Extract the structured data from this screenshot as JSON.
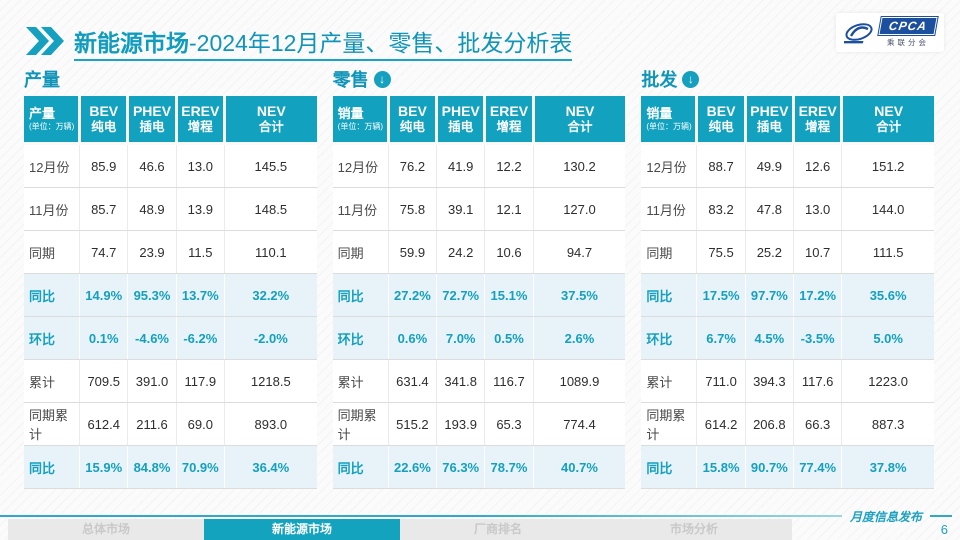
{
  "page": {
    "title_bold": "新能源市场",
    "title_rest": "-2024年12月产量、零售、批发分析表",
    "footer_label": "月度信息发布",
    "page_number": "6",
    "watermark": "CPCA"
  },
  "logo": {
    "text": "CPCA",
    "subtext": "乘联分会"
  },
  "icons": {
    "down_arrow": "↓",
    "double_chevron": "double-chevron"
  },
  "colors": {
    "primary_teal": "#12A2BF",
    "highlight_bg": "#E7F3F8",
    "logo_blue": "#1C4F9E"
  },
  "tables": [
    {
      "section": "产量",
      "arrow": false,
      "unit_label": "产量",
      "unit_note": "(单位：万辆)",
      "columns": [
        {
          "en": "BEV",
          "cn": "纯电"
        },
        {
          "en": "PHEV",
          "cn": "插电"
        },
        {
          "en": "EREV",
          "cn": "增程"
        },
        {
          "en": "NEV",
          "cn": "合计"
        }
      ],
      "rows": [
        {
          "label": "12月份",
          "highlight": false,
          "values": [
            "85.9",
            "46.6",
            "13.0",
            "145.5"
          ]
        },
        {
          "label": "11月份",
          "highlight": false,
          "values": [
            "85.7",
            "48.9",
            "13.9",
            "148.5"
          ]
        },
        {
          "label": "同期",
          "highlight": false,
          "values": [
            "74.7",
            "23.9",
            "11.5",
            "110.1"
          ]
        },
        {
          "label": "同比",
          "highlight": true,
          "values": [
            "14.9%",
            "95.3%",
            "13.7%",
            "32.2%"
          ]
        },
        {
          "label": "环比",
          "highlight": true,
          "values": [
            "0.1%",
            "-4.6%",
            "-6.2%",
            "-2.0%"
          ]
        },
        {
          "label": "累计",
          "highlight": false,
          "values": [
            "709.5",
            "391.0",
            "117.9",
            "1218.5"
          ]
        },
        {
          "label": "同期累计",
          "highlight": false,
          "values": [
            "612.4",
            "211.6",
            "69.0",
            "893.0"
          ]
        },
        {
          "label": "同比",
          "highlight": true,
          "values": [
            "15.9%",
            "84.8%",
            "70.9%",
            "36.4%"
          ]
        }
      ]
    },
    {
      "section": "零售",
      "arrow": true,
      "unit_label": "销量",
      "unit_note": "(单位：万辆)",
      "columns": [
        {
          "en": "BEV",
          "cn": "纯电"
        },
        {
          "en": "PHEV",
          "cn": "插电"
        },
        {
          "en": "EREV",
          "cn": "增程"
        },
        {
          "en": "NEV",
          "cn": "合计"
        }
      ],
      "rows": [
        {
          "label": "12月份",
          "highlight": false,
          "values": [
            "76.2",
            "41.9",
            "12.2",
            "130.2"
          ]
        },
        {
          "label": "11月份",
          "highlight": false,
          "values": [
            "75.8",
            "39.1",
            "12.1",
            "127.0"
          ]
        },
        {
          "label": "同期",
          "highlight": false,
          "values": [
            "59.9",
            "24.2",
            "10.6",
            "94.7"
          ]
        },
        {
          "label": "同比",
          "highlight": true,
          "values": [
            "27.2%",
            "72.7%",
            "15.1%",
            "37.5%"
          ]
        },
        {
          "label": "环比",
          "highlight": true,
          "values": [
            "0.6%",
            "7.0%",
            "0.5%",
            "2.6%"
          ]
        },
        {
          "label": "累计",
          "highlight": false,
          "values": [
            "631.4",
            "341.8",
            "116.7",
            "1089.9"
          ]
        },
        {
          "label": "同期累计",
          "highlight": false,
          "values": [
            "515.2",
            "193.9",
            "65.3",
            "774.4"
          ]
        },
        {
          "label": "同比",
          "highlight": true,
          "values": [
            "22.6%",
            "76.3%",
            "78.7%",
            "40.7%"
          ]
        }
      ]
    },
    {
      "section": "批发",
      "arrow": true,
      "unit_label": "销量",
      "unit_note": "(单位：万辆)",
      "columns": [
        {
          "en": "BEV",
          "cn": "纯电"
        },
        {
          "en": "PHEV",
          "cn": "插电"
        },
        {
          "en": "EREV",
          "cn": "增程"
        },
        {
          "en": "NEV",
          "cn": "合计"
        }
      ],
      "rows": [
        {
          "label": "12月份",
          "highlight": false,
          "values": [
            "88.7",
            "49.9",
            "12.6",
            "151.2"
          ]
        },
        {
          "label": "11月份",
          "highlight": false,
          "values": [
            "83.2",
            "47.8",
            "13.0",
            "144.0"
          ]
        },
        {
          "label": "同期",
          "highlight": false,
          "values": [
            "75.5",
            "25.2",
            "10.7",
            "111.5"
          ]
        },
        {
          "label": "同比",
          "highlight": true,
          "values": [
            "17.5%",
            "97.7%",
            "17.2%",
            "35.6%"
          ]
        },
        {
          "label": "环比",
          "highlight": true,
          "values": [
            "6.7%",
            "4.5%",
            "-3.5%",
            "5.0%"
          ]
        },
        {
          "label": "累计",
          "highlight": false,
          "values": [
            "711.0",
            "394.3",
            "117.6",
            "1223.0"
          ]
        },
        {
          "label": "同期累计",
          "highlight": false,
          "values": [
            "614.2",
            "206.8",
            "66.3",
            "887.3"
          ]
        },
        {
          "label": "同比",
          "highlight": true,
          "values": [
            "15.8%",
            "90.7%",
            "77.4%",
            "37.8%"
          ]
        }
      ]
    }
  ],
  "tabs": [
    {
      "label": "总体市场",
      "active": false
    },
    {
      "label": "新能源市场",
      "active": true
    },
    {
      "label": "厂商排名",
      "active": false
    },
    {
      "label": "市场分析",
      "active": false
    }
  ],
  "chart_data": [
    {
      "type": "table",
      "title": "产量 (单位：万辆)",
      "columns": [
        "",
        "BEV 纯电",
        "PHEV 插电",
        "EREV 增程",
        "NEV 合计"
      ],
      "rows": [
        [
          "12月份",
          85.9,
          46.6,
          13.0,
          145.5
        ],
        [
          "11月份",
          85.7,
          48.9,
          13.9,
          148.5
        ],
        [
          "同期",
          74.7,
          23.9,
          11.5,
          110.1
        ],
        [
          "同比",
          "14.9%",
          "95.3%",
          "13.7%",
          "32.2%"
        ],
        [
          "环比",
          "0.1%",
          "-4.6%",
          "-6.2%",
          "-2.0%"
        ],
        [
          "累计",
          709.5,
          391.0,
          117.9,
          1218.5
        ],
        [
          "同期累计",
          612.4,
          211.6,
          69.0,
          893.0
        ],
        [
          "同比",
          "15.9%",
          "84.8%",
          "70.9%",
          "36.4%"
        ]
      ]
    },
    {
      "type": "table",
      "title": "零售 销量 (单位：万辆)",
      "columns": [
        "",
        "BEV 纯电",
        "PHEV 插电",
        "EREV 增程",
        "NEV 合计"
      ],
      "rows": [
        [
          "12月份",
          76.2,
          41.9,
          12.2,
          130.2
        ],
        [
          "11月份",
          75.8,
          39.1,
          12.1,
          127.0
        ],
        [
          "同期",
          59.9,
          24.2,
          10.6,
          94.7
        ],
        [
          "同比",
          "27.2%",
          "72.7%",
          "15.1%",
          "37.5%"
        ],
        [
          "环比",
          "0.6%",
          "7.0%",
          "0.5%",
          "2.6%"
        ],
        [
          "累计",
          631.4,
          341.8,
          116.7,
          1089.9
        ],
        [
          "同期累计",
          515.2,
          193.9,
          65.3,
          774.4
        ],
        [
          "同比",
          "22.6%",
          "76.3%",
          "78.7%",
          "40.7%"
        ]
      ]
    },
    {
      "type": "table",
      "title": "批发 销量 (单位：万辆)",
      "columns": [
        "",
        "BEV 纯电",
        "PHEV 插电",
        "EREV 增程",
        "NEV 合计"
      ],
      "rows": [
        [
          "12月份",
          88.7,
          49.9,
          12.6,
          151.2
        ],
        [
          "11月份",
          83.2,
          47.8,
          13.0,
          144.0
        ],
        [
          "同期",
          75.5,
          25.2,
          10.7,
          111.5
        ],
        [
          "同比",
          "17.5%",
          "97.7%",
          "17.2%",
          "35.6%"
        ],
        [
          "环比",
          "6.7%",
          "4.5%",
          "-3.5%",
          "5.0%"
        ],
        [
          "累计",
          711.0,
          394.3,
          117.6,
          1223.0
        ],
        [
          "同期累计",
          614.2,
          206.8,
          66.3,
          887.3
        ],
        [
          "同比",
          "15.8%",
          "90.7%",
          "77.4%",
          "37.8%"
        ]
      ]
    }
  ]
}
